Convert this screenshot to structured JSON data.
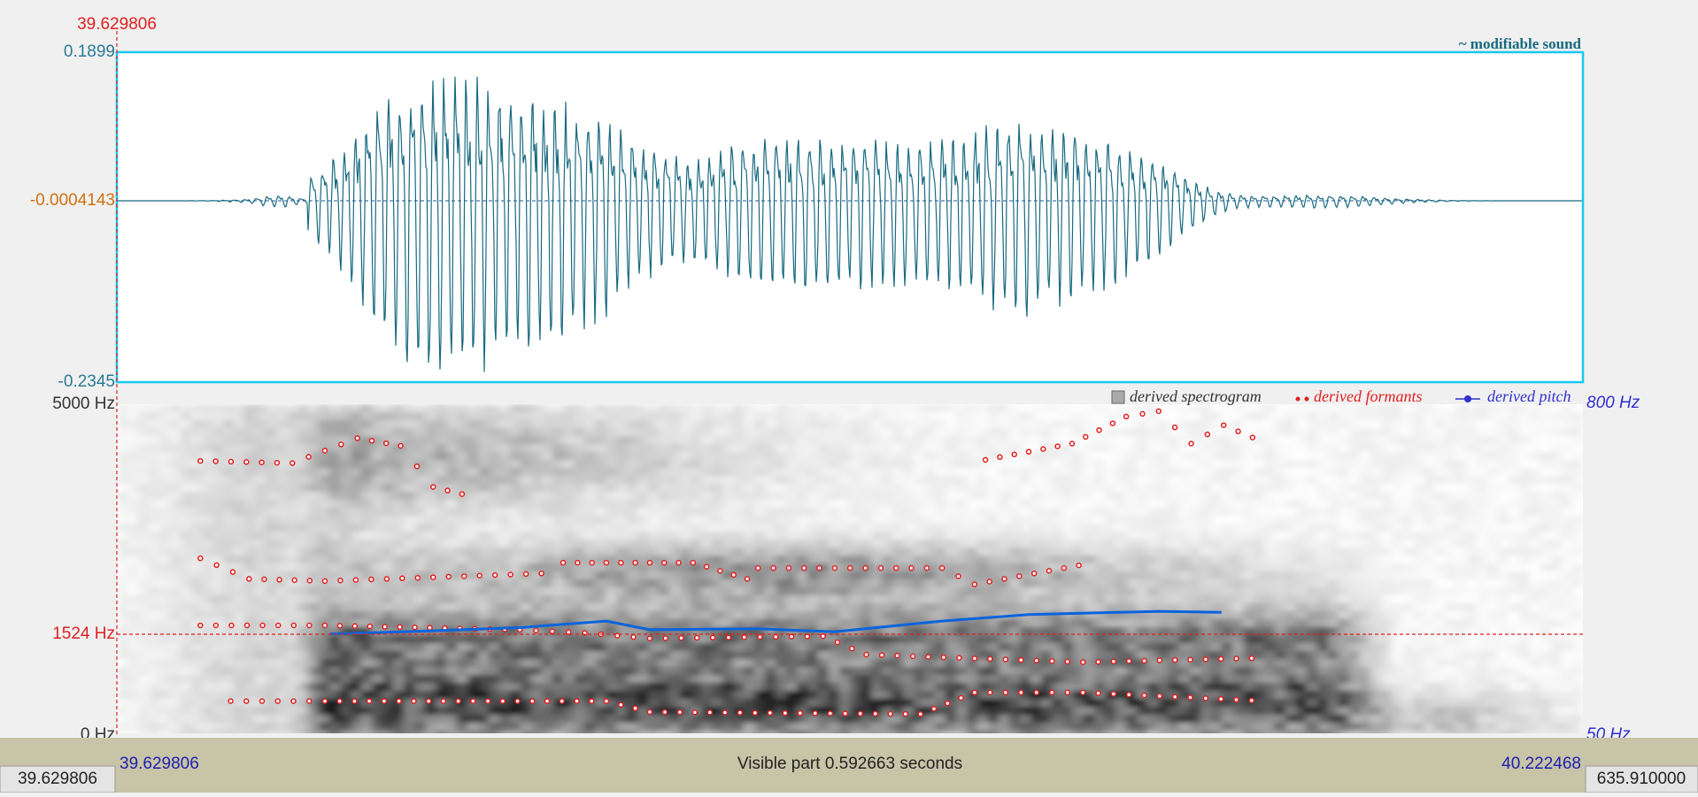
{
  "cursor_time": "39.629806",
  "waveform": {
    "title": "~ modifiable sound",
    "max": "0.1899",
    "center": "-0.0004143",
    "min": "-0.2345"
  },
  "spectrogram": {
    "top": "5000 Hz",
    "cursor": "1524 Hz",
    "bottom": "0 Hz",
    "pitch_top": "800 Hz",
    "pitch_bottom": "50 Hz",
    "legend": [
      "derived spectrogram",
      "derived formants",
      "derived pitch"
    ]
  },
  "bottom_bar": {
    "left": "39.629806",
    "start": "39.629806",
    "visible": "Visible part 0.592663 seconds",
    "end": "40.222468",
    "right": "635.910000"
  }
}
